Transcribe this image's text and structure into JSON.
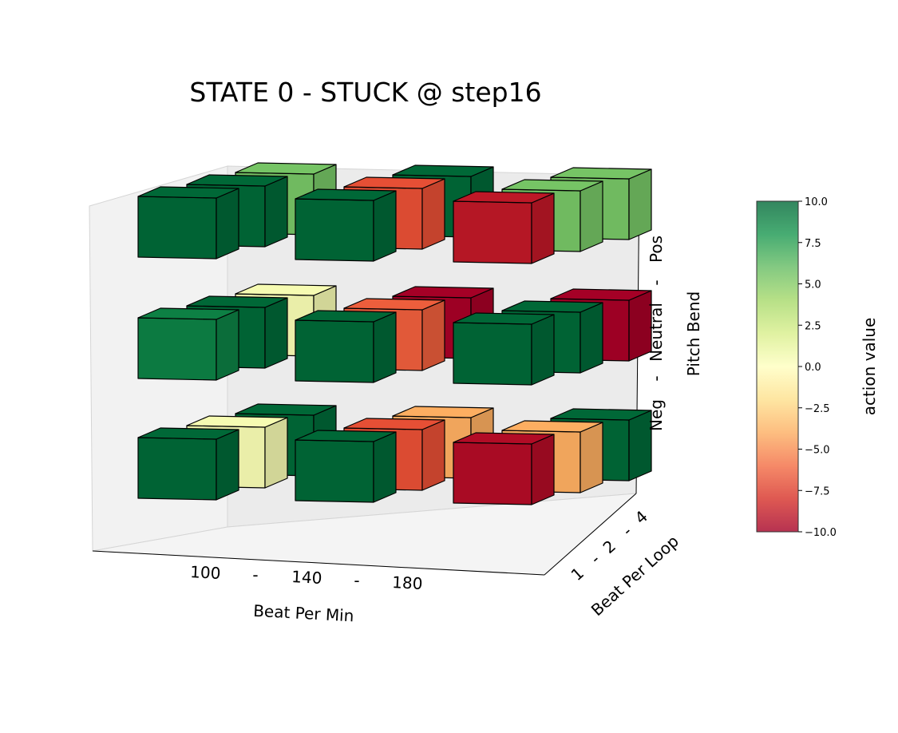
{
  "chart_data": {
    "type": "3d-bar",
    "title": "STATE 0 - STUCK @ step16",
    "xlabel": "Beat Per Min",
    "ylabel": "Beat Per Loop",
    "zlabel": "Pitch Bend",
    "x_ticks": [
      "100",
      "-",
      "140",
      "-",
      "180"
    ],
    "y_ticks": [
      "1",
      "-",
      "2",
      "-",
      "4"
    ],
    "z_ticks": [
      "Neg",
      "-",
      "Neutral",
      "-",
      "Pos"
    ],
    "x_categories": [
      "100",
      "140",
      "180"
    ],
    "y_categories": [
      "1",
      "2",
      "4"
    ],
    "z_categories": [
      "Neg",
      "Neutral",
      "Pos"
    ],
    "colorbar": {
      "label": "action value",
      "min": -10,
      "max": 10,
      "ticks": [
        "10.0",
        "7.5",
        "5.0",
        "2.5",
        "0.0",
        "−2.5",
        "−5.0",
        "−7.5",
        "−10.0"
      ],
      "colormap": "RdYlGn"
    },
    "values": {
      "Pos": {
        "1": [
          10.0,
          10.0,
          -9.0
        ],
        "2": [
          10.0,
          -7.0,
          5.5
        ],
        "4": [
          5.5,
          10.0,
          5.5
        ]
      },
      "Neutral": {
        "1": [
          9.0,
          10.0,
          10.0
        ],
        "2": [
          10.0,
          -6.5,
          10.0
        ],
        "4": [
          0.5,
          -10.0,
          -10.0
        ]
      },
      "Neg": {
        "1": [
          10.0,
          10.0,
          -9.5
        ],
        "2": [
          0.5,
          -7.0,
          -4.0
        ],
        "4": [
          10.0,
          -4.0,
          10.0
        ]
      }
    }
  }
}
